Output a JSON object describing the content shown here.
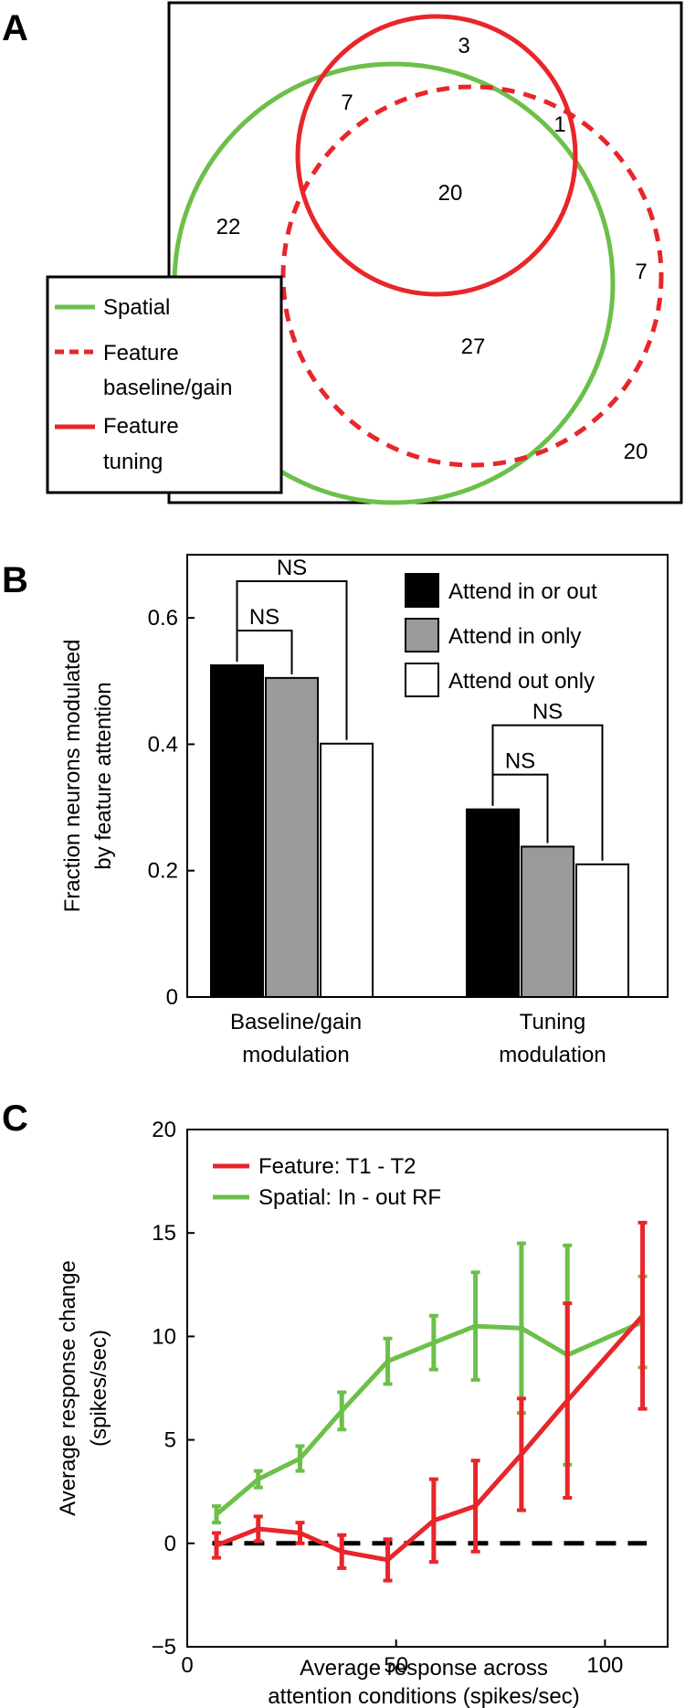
{
  "colors": {
    "spatial": "#6cc04a",
    "feature": "#e8262a",
    "dashed_zero": "#000000",
    "attend_in_or_out": "#000000",
    "attend_in_only": "#9a9a9a",
    "attend_out_only": "#ffffff"
  },
  "panelA": {
    "letter": "A",
    "region_counts": {
      "tuning_only": "3",
      "spatial_tuning": "7",
      "tuning_baseline": "1",
      "all_three": "20",
      "spatial_only": "22",
      "baseline_only": "7",
      "spatial_baseline": "27",
      "none": "20"
    },
    "legend": {
      "spatial": "Spatial",
      "baseline_line1": "Feature",
      "baseline_line2": "baseline/gain",
      "tuning_line1": "Feature",
      "tuning_line2": "tuning"
    }
  },
  "chart_data": [
    {
      "type": "bar",
      "panel": "B",
      "ylabel_line1": "Fraction neurons modulated",
      "ylabel_line2": "by feature attention",
      "categories": [
        {
          "line1": "Baseline/gain",
          "line2": "modulation"
        },
        {
          "line1": "Tuning",
          "line2": "modulation"
        }
      ],
      "series": [
        {
          "name": "Attend in or out",
          "values": [
            0.525,
            0.297
          ]
        },
        {
          "name": "Attend in only",
          "values": [
            0.505,
            0.238
          ]
        },
        {
          "name": "Attend out only",
          "values": [
            0.401,
            0.21
          ]
        }
      ],
      "ylim": [
        0,
        0.7
      ],
      "yticks": [
        {
          "v": 0,
          "label": "0"
        },
        {
          "v": 0.2,
          "label": "0.2"
        },
        {
          "v": 0.4,
          "label": "0.4"
        },
        {
          "v": 0.6,
          "label": "0.6"
        }
      ],
      "significance_label": "NS",
      "legend_position": "top-right"
    },
    {
      "type": "line",
      "panel": "C",
      "xlabel_line1": "Average response across",
      "xlabel_line2": "attention conditions (spikes/sec)",
      "ylabel_line1": "Average response change",
      "ylabel_line2": "(spikes/sec)",
      "xlim": [
        0,
        115
      ],
      "ylim": [
        -5,
        20
      ],
      "xticks": [
        {
          "v": 0,
          "label": "0"
        },
        {
          "v": 50,
          "label": "50"
        },
        {
          "v": 100,
          "label": "100"
        }
      ],
      "yticks": [
        {
          "v": -5,
          "label": "−5"
        },
        {
          "v": 0,
          "label": "0"
        },
        {
          "v": 5,
          "label": "5"
        },
        {
          "v": 10,
          "label": "10"
        },
        {
          "v": 15,
          "label": "15"
        },
        {
          "v": 20,
          "label": "20"
        }
      ],
      "reference_line_y": 0,
      "legend_position": "top-left",
      "series": [
        {
          "name": "Feature: T1 - T2",
          "x": [
            7,
            17,
            27,
            37,
            48,
            59,
            69,
            80,
            91,
            109
          ],
          "y": [
            -0.1,
            0.7,
            0.5,
            -0.4,
            -0.8,
            1.1,
            1.8,
            4.3,
            6.9,
            11.0
          ],
          "err": [
            0.6,
            0.6,
            0.5,
            0.8,
            1.0,
            2.0,
            2.2,
            2.7,
            4.7,
            4.5
          ]
        },
        {
          "name": "Spatial: In - out RF",
          "x": [
            7,
            17,
            27,
            37,
            48,
            59,
            69,
            80,
            91,
            109
          ],
          "y": [
            1.4,
            3.1,
            4.1,
            6.4,
            8.8,
            9.7,
            10.5,
            10.4,
            9.1,
            10.7
          ],
          "err": [
            0.4,
            0.4,
            0.6,
            0.9,
            1.1,
            1.3,
            2.6,
            4.1,
            5.3,
            2.2
          ]
        }
      ]
    }
  ]
}
